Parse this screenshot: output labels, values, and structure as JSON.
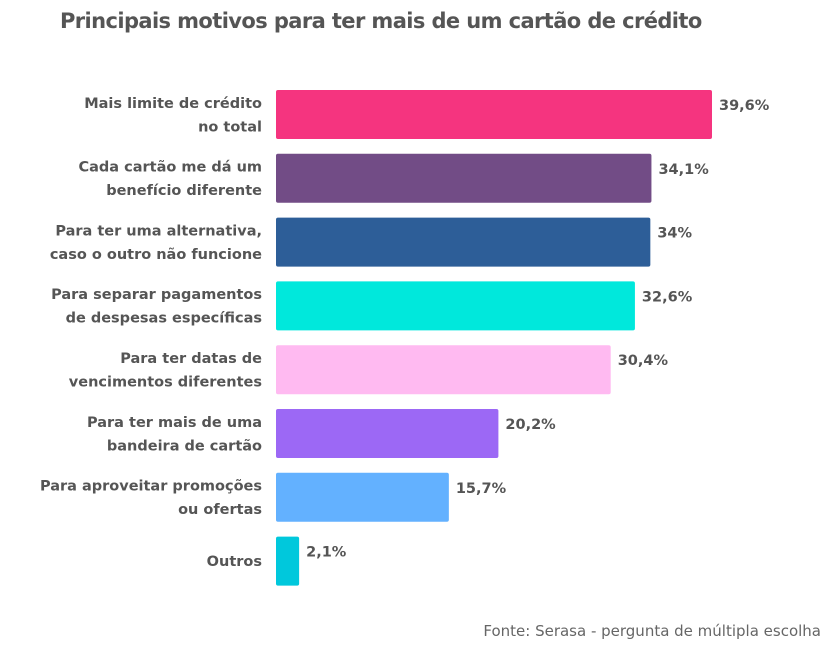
{
  "chart_data": {
    "type": "bar",
    "orientation": "horizontal",
    "title": "Principais motivos para ter mais de um cartão de crédito",
    "xlabel": "",
    "ylabel": "",
    "xlim": [
      0,
      39.6
    ],
    "grid": false,
    "legend": "none",
    "categories": [
      [
        "Mais limite de crédito",
        "no total"
      ],
      [
        "Cada cartão me dá um",
        "benefício diferente"
      ],
      [
        "Para ter uma alternativa,",
        "caso o outro não funcione"
      ],
      [
        "Para separar pagamentos",
        "de despesas específicas"
      ],
      [
        "Para ter datas de",
        "vencimentos diferentes"
      ],
      [
        "Para ter mais de uma",
        "bandeira de cartão"
      ],
      [
        "Para aproveitar promoções",
        "ou ofertas"
      ],
      [
        "Outros"
      ]
    ],
    "values": [
      39.6,
      34.1,
      34,
      32.6,
      30.4,
      20.2,
      15.7,
      2.1
    ],
    "value_labels": [
      "39,6%",
      "34,1%",
      "34%",
      "32,6%",
      "30,4%",
      "20,2%",
      "15,7%",
      "2,1%"
    ],
    "colors": [
      "#f5347f",
      "#724c86",
      "#2d5e98",
      "#00e8dc",
      "#ffbaf1",
      "#9c68f5",
      "#63b1ff",
      "#00c8dc"
    ],
    "source": "Fonte: Serasa - pergunta de múltipla escolha"
  }
}
